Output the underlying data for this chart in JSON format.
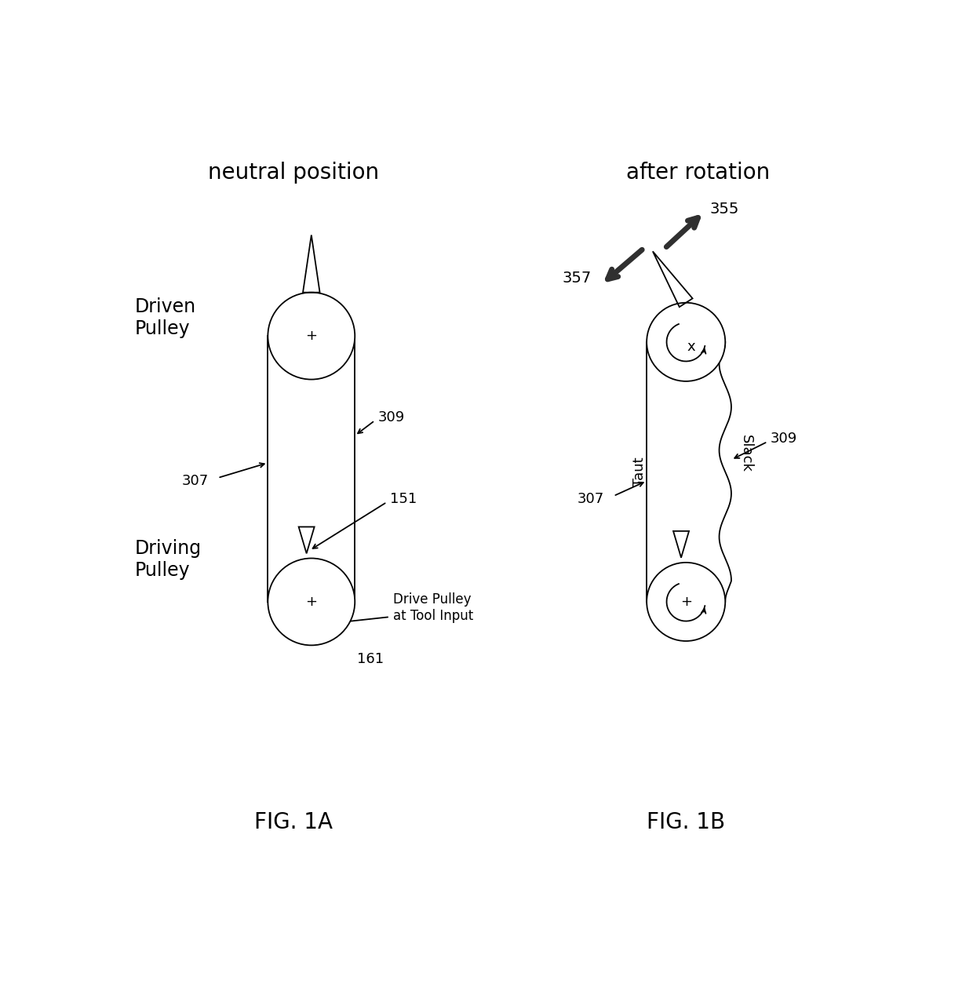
{
  "fig_width": 12.4,
  "fig_height": 12.77,
  "bg_color": "#ffffff",
  "line_color": "#000000",
  "title_left": "neutral position",
  "title_right": "after rotation",
  "fig1a_label": "FIG. 1A",
  "fig1b_label": "FIG. 1B",
  "label_driven_pulley": "Driven\nPulley",
  "label_driving_pulley": "Driving\nPulley",
  "label_307": "307",
  "label_309": "309",
  "label_151": "151",
  "label_161": "161",
  "label_355": "355",
  "label_357": "357",
  "label_307b": "307",
  "label_309b": "309",
  "label_taut": "Taut",
  "label_slack": "Slack",
  "label_drive_pulley_tool": "Drive Pulley\nat Tool Input"
}
